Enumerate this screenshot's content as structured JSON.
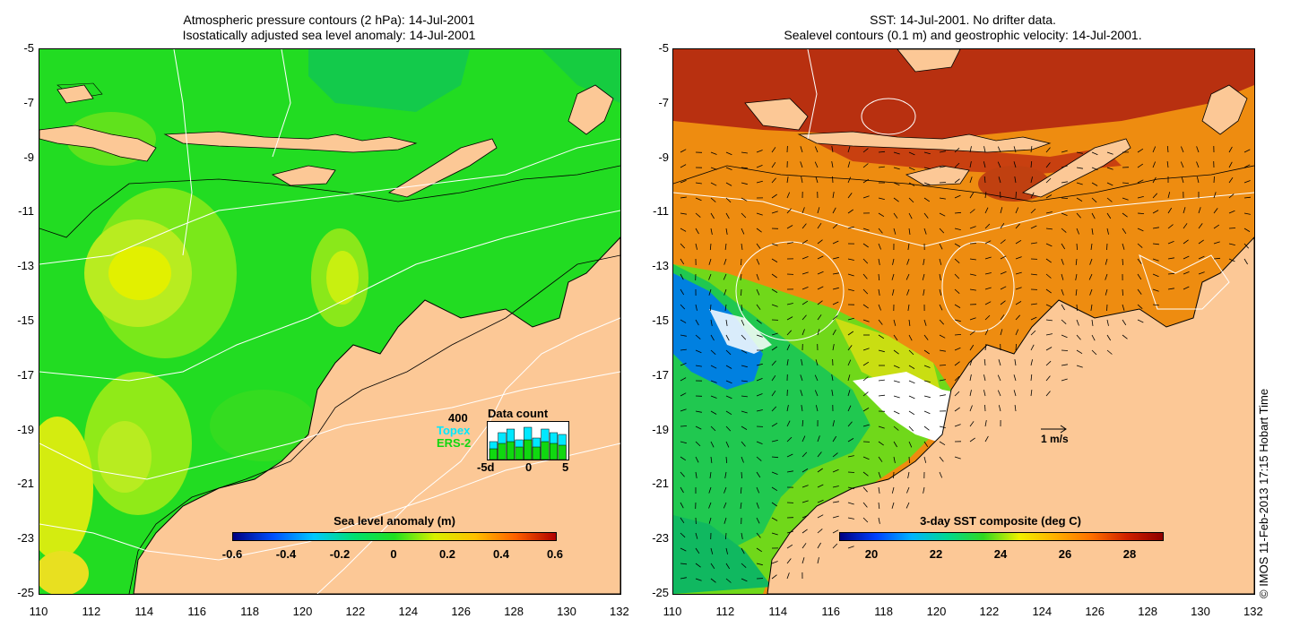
{
  "left_panel": {
    "title_line1": "Atmospheric pressure contours (2 hPa): 14-Jul-2001",
    "title_line2": "Isostatically adjusted sea level anomaly: 14-Jul-2001",
    "colorbar": {
      "title": "Sea level anomaly (m)",
      "ticks": [
        "-0.6",
        "-0.4",
        "-0.2",
        "0",
        "0.2",
        "0.4",
        "0.6"
      ],
      "stops": [
        "#000080",
        "#0050ff",
        "#00c8ff",
        "#00e070",
        "#20e020",
        "#d8f000",
        "#ffc000",
        "#ff6000",
        "#b00000"
      ]
    },
    "data_count": {
      "title": "Data count",
      "max_label": "400",
      "series1": "Topex",
      "series2": "ERS-2",
      "axis_ticks": [
        "-5d",
        "0",
        "5"
      ],
      "topex_color": "#00e8ff",
      "ers_color": "#10d810"
    }
  },
  "right_panel": {
    "title_line1": "SST: 14-Jul-2001. No drifter data.",
    "title_line2": "Sealevel contours (0.1 m) and geostrophic velocity: 14-Jul-2001.",
    "scale_label": "1 m/s",
    "colorbar": {
      "title": "3-day SST composite (deg C)",
      "ticks": [
        "20",
        "22",
        "24",
        "26",
        "28"
      ],
      "stops": [
        "#000080",
        "#0040ff",
        "#00b4ff",
        "#00d890",
        "#30d820",
        "#f0f000",
        "#ffb000",
        "#ff7000",
        "#d02000",
        "#900000"
      ]
    }
  },
  "axes": {
    "y_ticks": [
      "-5",
      "-7",
      "-9",
      "-11",
      "-13",
      "-15",
      "-17",
      "-19",
      "-21",
      "-23",
      "-25"
    ],
    "x_ticks": [
      "110",
      "112",
      "114",
      "116",
      "118",
      "120",
      "122",
      "124",
      "126",
      "128",
      "130",
      "132"
    ]
  },
  "colors": {
    "land": "#fcc896",
    "sea_green": "#22dc22",
    "sea_dark_green": "#10c440",
    "anomaly_yellow": "#b8ec20",
    "sst_orange": "#ee8c10",
    "sst_dark_red": "#b83010",
    "sst_blue": "#0080e0"
  },
  "copyright": "© IMOS 11-Feb-2013 17:15 Hobart Time"
}
